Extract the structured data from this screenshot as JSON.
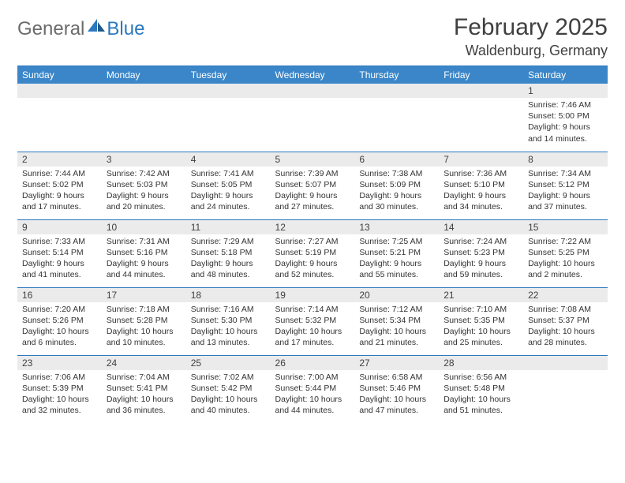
{
  "brand": {
    "part1": "General",
    "part2": "Blue"
  },
  "title": "February 2025",
  "location": "Waldenburg, Germany",
  "colors": {
    "accent": "#3a86c8",
    "rule": "#2b78bd",
    "daybg": "#ebebeb",
    "text": "#333333",
    "title": "#404040",
    "logo_gray": "#6b6b6b"
  },
  "weekdays": [
    "Sunday",
    "Monday",
    "Tuesday",
    "Wednesday",
    "Thursday",
    "Friday",
    "Saturday"
  ],
  "weeks": [
    [
      null,
      null,
      null,
      null,
      null,
      null,
      {
        "n": "1",
        "sr": "Sunrise: 7:46 AM",
        "ss": "Sunset: 5:00 PM",
        "dl": "Daylight: 9 hours and 14 minutes."
      }
    ],
    [
      {
        "n": "2",
        "sr": "Sunrise: 7:44 AM",
        "ss": "Sunset: 5:02 PM",
        "dl": "Daylight: 9 hours and 17 minutes."
      },
      {
        "n": "3",
        "sr": "Sunrise: 7:42 AM",
        "ss": "Sunset: 5:03 PM",
        "dl": "Daylight: 9 hours and 20 minutes."
      },
      {
        "n": "4",
        "sr": "Sunrise: 7:41 AM",
        "ss": "Sunset: 5:05 PM",
        "dl": "Daylight: 9 hours and 24 minutes."
      },
      {
        "n": "5",
        "sr": "Sunrise: 7:39 AM",
        "ss": "Sunset: 5:07 PM",
        "dl": "Daylight: 9 hours and 27 minutes."
      },
      {
        "n": "6",
        "sr": "Sunrise: 7:38 AM",
        "ss": "Sunset: 5:09 PM",
        "dl": "Daylight: 9 hours and 30 minutes."
      },
      {
        "n": "7",
        "sr": "Sunrise: 7:36 AM",
        "ss": "Sunset: 5:10 PM",
        "dl": "Daylight: 9 hours and 34 minutes."
      },
      {
        "n": "8",
        "sr": "Sunrise: 7:34 AM",
        "ss": "Sunset: 5:12 PM",
        "dl": "Daylight: 9 hours and 37 minutes."
      }
    ],
    [
      {
        "n": "9",
        "sr": "Sunrise: 7:33 AM",
        "ss": "Sunset: 5:14 PM",
        "dl": "Daylight: 9 hours and 41 minutes."
      },
      {
        "n": "10",
        "sr": "Sunrise: 7:31 AM",
        "ss": "Sunset: 5:16 PM",
        "dl": "Daylight: 9 hours and 44 minutes."
      },
      {
        "n": "11",
        "sr": "Sunrise: 7:29 AM",
        "ss": "Sunset: 5:18 PM",
        "dl": "Daylight: 9 hours and 48 minutes."
      },
      {
        "n": "12",
        "sr": "Sunrise: 7:27 AM",
        "ss": "Sunset: 5:19 PM",
        "dl": "Daylight: 9 hours and 52 minutes."
      },
      {
        "n": "13",
        "sr": "Sunrise: 7:25 AM",
        "ss": "Sunset: 5:21 PM",
        "dl": "Daylight: 9 hours and 55 minutes."
      },
      {
        "n": "14",
        "sr": "Sunrise: 7:24 AM",
        "ss": "Sunset: 5:23 PM",
        "dl": "Daylight: 9 hours and 59 minutes."
      },
      {
        "n": "15",
        "sr": "Sunrise: 7:22 AM",
        "ss": "Sunset: 5:25 PM",
        "dl": "Daylight: 10 hours and 2 minutes."
      }
    ],
    [
      {
        "n": "16",
        "sr": "Sunrise: 7:20 AM",
        "ss": "Sunset: 5:26 PM",
        "dl": "Daylight: 10 hours and 6 minutes."
      },
      {
        "n": "17",
        "sr": "Sunrise: 7:18 AM",
        "ss": "Sunset: 5:28 PM",
        "dl": "Daylight: 10 hours and 10 minutes."
      },
      {
        "n": "18",
        "sr": "Sunrise: 7:16 AM",
        "ss": "Sunset: 5:30 PM",
        "dl": "Daylight: 10 hours and 13 minutes."
      },
      {
        "n": "19",
        "sr": "Sunrise: 7:14 AM",
        "ss": "Sunset: 5:32 PM",
        "dl": "Daylight: 10 hours and 17 minutes."
      },
      {
        "n": "20",
        "sr": "Sunrise: 7:12 AM",
        "ss": "Sunset: 5:34 PM",
        "dl": "Daylight: 10 hours and 21 minutes."
      },
      {
        "n": "21",
        "sr": "Sunrise: 7:10 AM",
        "ss": "Sunset: 5:35 PM",
        "dl": "Daylight: 10 hours and 25 minutes."
      },
      {
        "n": "22",
        "sr": "Sunrise: 7:08 AM",
        "ss": "Sunset: 5:37 PM",
        "dl": "Daylight: 10 hours and 28 minutes."
      }
    ],
    [
      {
        "n": "23",
        "sr": "Sunrise: 7:06 AM",
        "ss": "Sunset: 5:39 PM",
        "dl": "Daylight: 10 hours and 32 minutes."
      },
      {
        "n": "24",
        "sr": "Sunrise: 7:04 AM",
        "ss": "Sunset: 5:41 PM",
        "dl": "Daylight: 10 hours and 36 minutes."
      },
      {
        "n": "25",
        "sr": "Sunrise: 7:02 AM",
        "ss": "Sunset: 5:42 PM",
        "dl": "Daylight: 10 hours and 40 minutes."
      },
      {
        "n": "26",
        "sr": "Sunrise: 7:00 AM",
        "ss": "Sunset: 5:44 PM",
        "dl": "Daylight: 10 hours and 44 minutes."
      },
      {
        "n": "27",
        "sr": "Sunrise: 6:58 AM",
        "ss": "Sunset: 5:46 PM",
        "dl": "Daylight: 10 hours and 47 minutes."
      },
      {
        "n": "28",
        "sr": "Sunrise: 6:56 AM",
        "ss": "Sunset: 5:48 PM",
        "dl": "Daylight: 10 hours and 51 minutes."
      },
      null
    ]
  ]
}
